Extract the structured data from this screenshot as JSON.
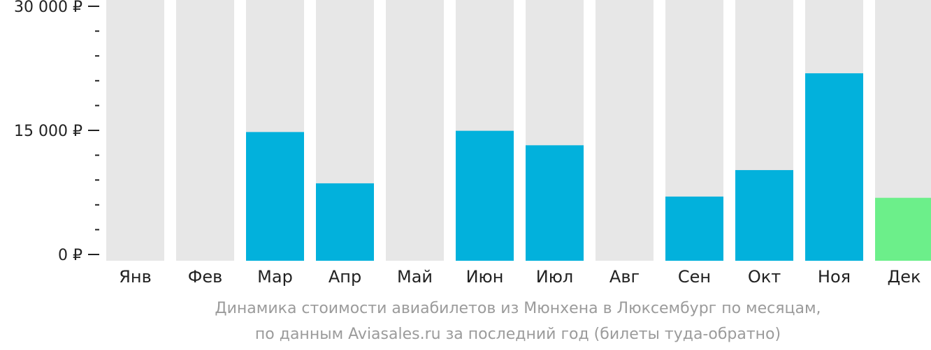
{
  "chart_data": {
    "type": "bar",
    "categories": [
      "Янв",
      "Фев",
      "Мар",
      "Апр",
      "Май",
      "Июн",
      "Июл",
      "Авг",
      "Сен",
      "Окт",
      "Ноя",
      "Дек"
    ],
    "values": [
      null,
      null,
      14800,
      8600,
      null,
      14950,
      13200,
      null,
      7000,
      10200,
      21900,
      6850
    ],
    "highlight_index": 11,
    "ylim": [
      0,
      30000
    ],
    "yticks": [
      {
        "value": 0,
        "label": "0 ₽"
      },
      {
        "value": 15000,
        "label": "15 000 ₽"
      },
      {
        "value": 30000,
        "label": "30 000 ₽"
      }
    ],
    "minor_tick_step": 3000,
    "caption": [
      "Динамика стоимости авиабилетов из Мюнхена в Люксембург по месяцам,",
      "по данным Aviasales.ru за последний год (билеты туда-обратно)"
    ],
    "colors": {
      "bar": "#02b1dc",
      "highlight": "#6cef8a",
      "background_column": "#e7e7e7"
    }
  }
}
